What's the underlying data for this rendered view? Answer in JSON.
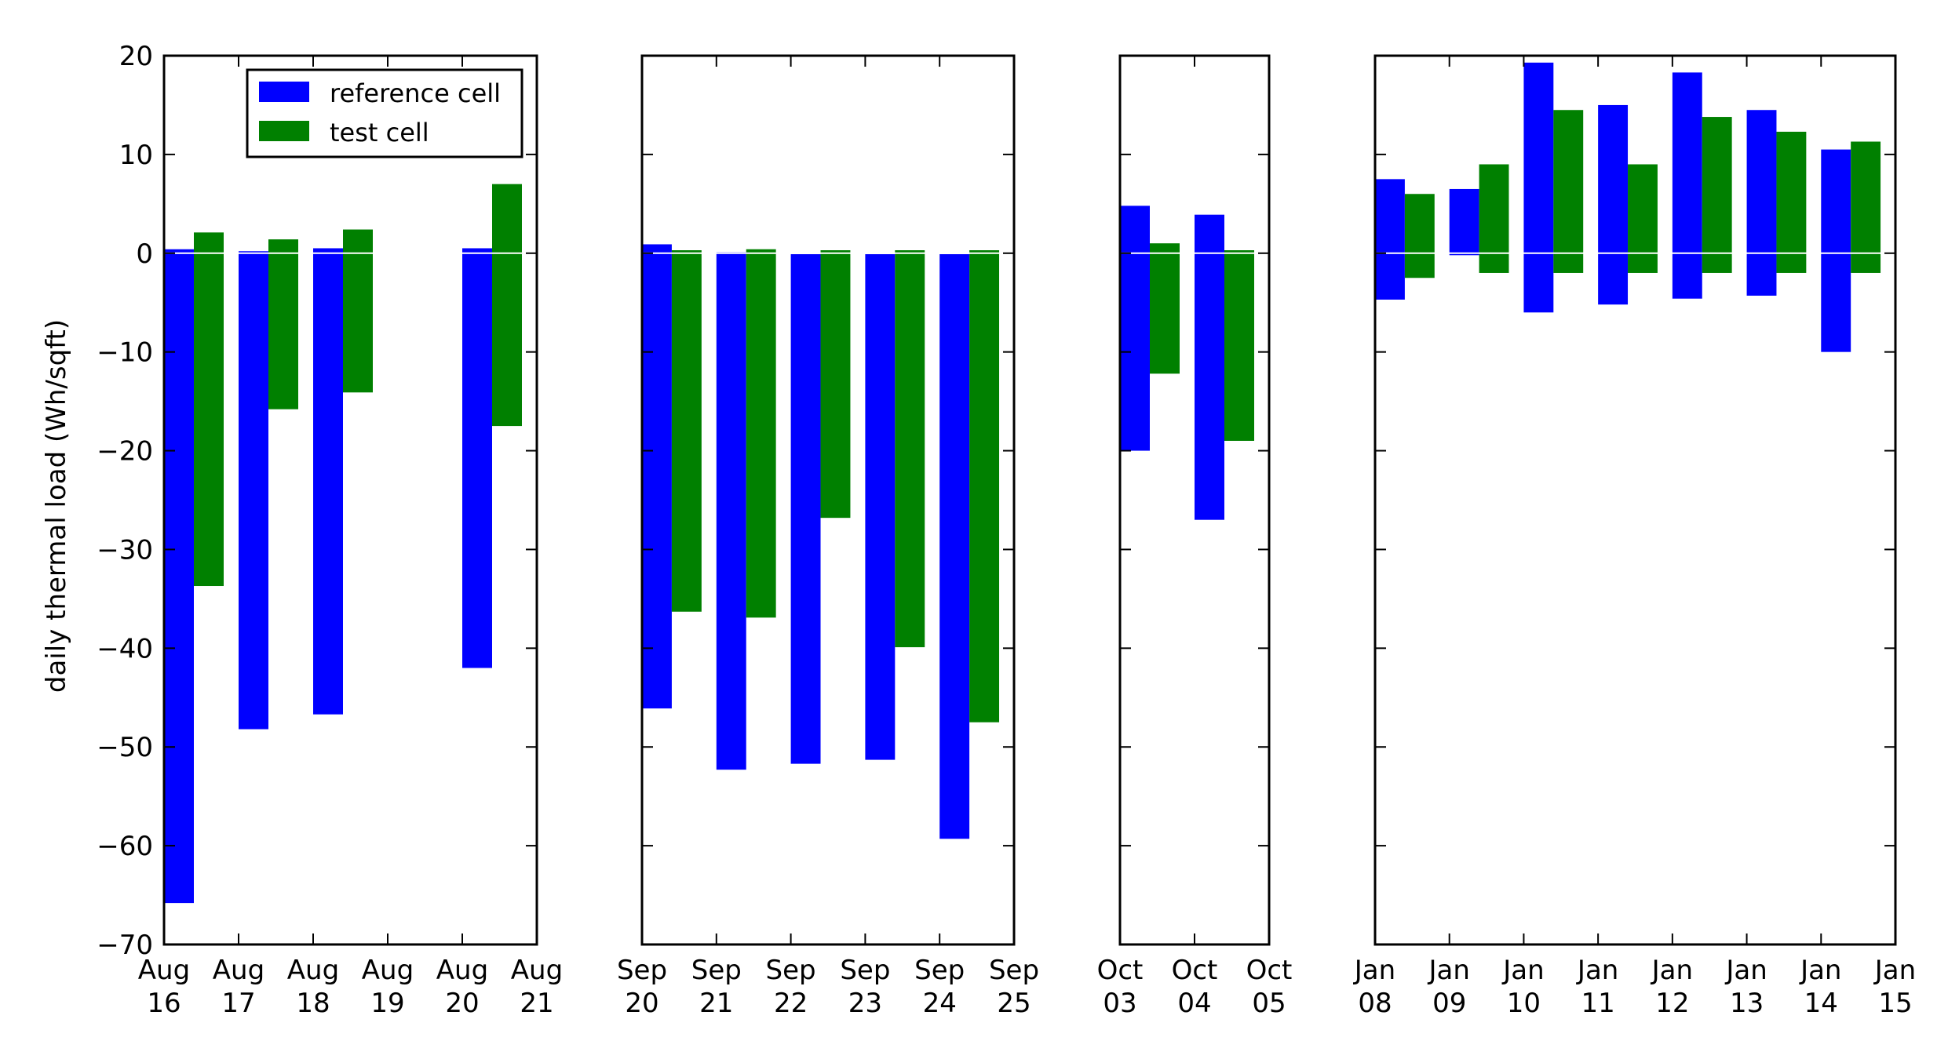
{
  "chart_data": {
    "type": "bar",
    "ylabel": "daily thermal load (Wh/sqft)",
    "ylim": [
      -70,
      20
    ],
    "yticks": [
      20,
      10,
      0,
      -10,
      -20,
      -30,
      -40,
      -50,
      -60,
      -70
    ],
    "ytick_labels": [
      "20",
      "10",
      "0",
      "−10",
      "−20",
      "−30",
      "−40",
      "−50",
      "−60",
      "−70"
    ],
    "legend": {
      "placement": "top-right of first panel",
      "entries": [
        "reference cell",
        "test cell"
      ]
    },
    "colors": {
      "reference cell": "#0000ff",
      "test cell": "#008000"
    },
    "panels": [
      {
        "tick_labels": [
          [
            "Aug",
            "16"
          ],
          [
            "Aug",
            "17"
          ],
          [
            "Aug",
            "18"
          ],
          [
            "Aug",
            "19"
          ],
          [
            "Aug",
            "20"
          ],
          [
            "Aug",
            "21"
          ]
        ],
        "days": [
          {
            "day": 0,
            "reference": [
              -65.8,
              0.4
            ],
            "test": [
              -33.7,
              2.1
            ]
          },
          {
            "day": 1,
            "reference": [
              -48.2,
              0.2
            ],
            "test": [
              -15.8,
              1.4
            ]
          },
          {
            "day": 2,
            "reference": [
              -46.7,
              0.5
            ],
            "test": [
              -14.1,
              2.4
            ]
          },
          {
            "day": 4,
            "reference": [
              -42.0,
              0.5
            ],
            "test": [
              -17.5,
              7.0
            ]
          }
        ]
      },
      {
        "tick_labels": [
          [
            "Sep",
            "20"
          ],
          [
            "Sep",
            "21"
          ],
          [
            "Sep",
            "22"
          ],
          [
            "Sep",
            "23"
          ],
          [
            "Sep",
            "24"
          ],
          [
            "Sep",
            "25"
          ]
        ],
        "days": [
          {
            "day": 0,
            "reference": [
              -46.1,
              0.9
            ],
            "test": [
              -36.3,
              0.3
            ]
          },
          {
            "day": 1,
            "reference": [
              -52.3,
              0.1
            ],
            "test": [
              -36.9,
              0.4
            ]
          },
          {
            "day": 2,
            "reference": [
              -51.7,
              -0.1
            ],
            "test": [
              -26.8,
              0.3
            ]
          },
          {
            "day": 3,
            "reference": [
              -51.3,
              -0.1
            ],
            "test": [
              -39.9,
              0.3
            ]
          },
          {
            "day": 4,
            "reference": [
              -59.3,
              -0.1
            ],
            "test": [
              -47.5,
              0.3
            ]
          }
        ]
      },
      {
        "tick_labels": [
          [
            "Oct",
            "03"
          ],
          [
            "Oct",
            "04"
          ],
          [
            "Oct",
            "05"
          ]
        ],
        "days": [
          {
            "day": 0,
            "reference": [
              -20.0,
              4.8
            ],
            "test": [
              -12.2,
              1.0
            ]
          },
          {
            "day": 1,
            "reference": [
              -27.0,
              3.9
            ],
            "test": [
              -19.0,
              0.3
            ]
          }
        ]
      },
      {
        "tick_labels": [
          [
            "Jan",
            "08"
          ],
          [
            "Jan",
            "09"
          ],
          [
            "Jan",
            "10"
          ],
          [
            "Jan",
            "11"
          ],
          [
            "Jan",
            "12"
          ],
          [
            "Jan",
            "13"
          ],
          [
            "Jan",
            "14"
          ],
          [
            "Jan",
            "15"
          ]
        ],
        "days": [
          {
            "day": 0,
            "reference": [
              -4.7,
              7.5
            ],
            "test": [
              -2.5,
              6.0
            ]
          },
          {
            "day": 1,
            "reference": [
              -0.2,
              6.5
            ],
            "test": [
              -2.0,
              9.0
            ]
          },
          {
            "day": 2,
            "reference": [
              -6.0,
              19.3
            ],
            "test": [
              -2.0,
              14.5
            ]
          },
          {
            "day": 3,
            "reference": [
              -5.2,
              15.0
            ],
            "test": [
              -2.0,
              9.0
            ]
          },
          {
            "day": 4,
            "reference": [
              -4.6,
              18.3
            ],
            "test": [
              -2.0,
              13.8
            ]
          },
          {
            "day": 5,
            "reference": [
              -4.3,
              14.5
            ],
            "test": [
              -2.0,
              12.3
            ]
          },
          {
            "day": 6,
            "reference": [
              -10.0,
              10.5
            ],
            "test": [
              -2.0,
              11.3
            ]
          }
        ]
      }
    ]
  }
}
